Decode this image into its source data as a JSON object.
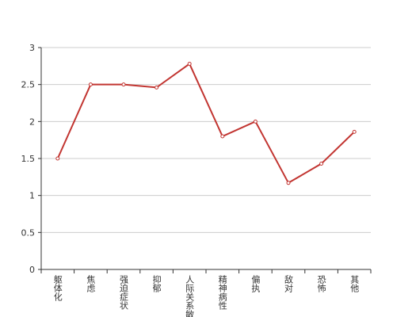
{
  "chart_data": {
    "type": "line",
    "categories": [
      "躯体化",
      "焦虑",
      "强迫症状",
      "抑郁",
      "人际关系敏感",
      "精神病性",
      "偏执",
      "敌对",
      "恐怖",
      "其他"
    ],
    "values": [
      1.5,
      2.5,
      2.5,
      2.46,
      2.78,
      1.8,
      2.0,
      1.17,
      1.43,
      1.86
    ],
    "color": "#c23531",
    "ylim": [
      0,
      3
    ],
    "yticks": [
      0,
      0.5,
      1,
      1.5,
      2,
      2.5,
      3
    ],
    "grid": true
  }
}
